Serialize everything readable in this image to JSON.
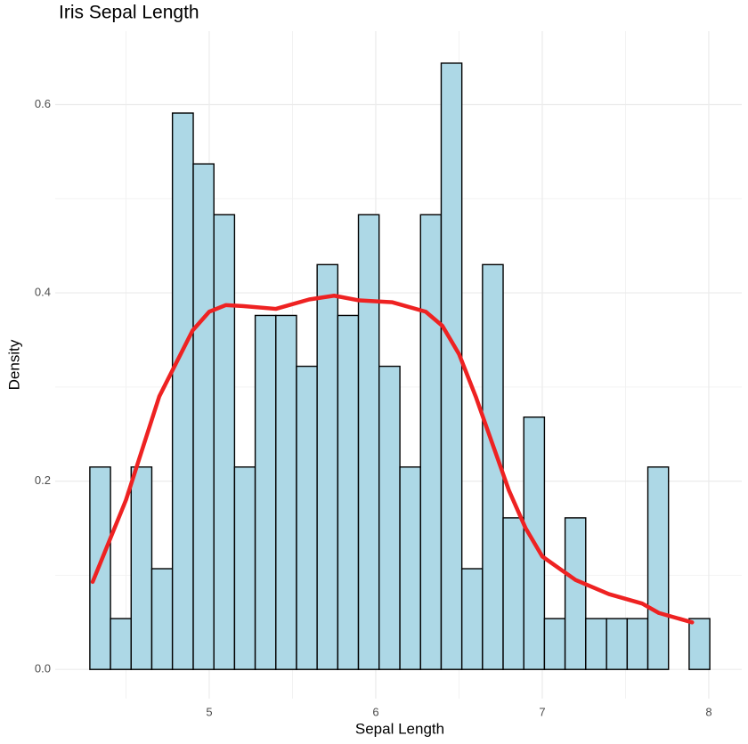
{
  "chart_data": {
    "type": "histogram",
    "title": "Iris Sepal Length",
    "x_label": "Sepal Length",
    "y_label": "Density",
    "bins": [
      4.283,
      4.407,
      4.531,
      4.655,
      4.779,
      4.904,
      5.028,
      5.152,
      5.276,
      5.4,
      5.524,
      5.648,
      5.772,
      5.896,
      6.02,
      6.145,
      6.269,
      6.393,
      6.517,
      6.641,
      6.765,
      6.889,
      7.013,
      7.137,
      7.261,
      7.386,
      7.51,
      7.634,
      7.758,
      7.882,
      8.006
    ],
    "values": [
      0.215,
      0.054,
      0.215,
      0.107,
      0.591,
      0.537,
      0.483,
      0.215,
      0.376,
      0.376,
      0.322,
      0.43,
      0.376,
      0.483,
      0.322,
      0.215,
      0.483,
      0.644,
      0.107,
      0.43,
      0.161,
      0.268,
      0.054,
      0.161,
      0.054,
      0.054,
      0.054,
      0.215,
      0,
      0.054
    ],
    "color": "#add8e6",
    "edge_color": "#000000",
    "density_curve": {
      "color": "#ee2222",
      "x": [
        4.3,
        4.5,
        4.7,
        4.9,
        5.0,
        5.1,
        5.2,
        5.4,
        5.6,
        5.75,
        5.9,
        6.1,
        6.3,
        6.4,
        6.5,
        6.6,
        6.7,
        6.8,
        6.9,
        7.0,
        7.2,
        7.4,
        7.6,
        7.7,
        7.9
      ],
      "values": [
        0.093,
        0.18,
        0.29,
        0.36,
        0.38,
        0.387,
        0.386,
        0.383,
        0.393,
        0.397,
        0.392,
        0.39,
        0.38,
        0.365,
        0.335,
        0.29,
        0.24,
        0.19,
        0.15,
        0.12,
        0.095,
        0.08,
        0.07,
        0.06,
        0.05
      ]
    },
    "xlim": [
      4.075,
      8.198
    ],
    "ylim": [
      -0.031,
      0.678
    ],
    "xticks": [
      5,
      6,
      7,
      8
    ],
    "yticks": [
      {
        "value": 0,
        "label": "0.0"
      },
      0.2,
      0.4,
      0.6
    ],
    "grid": true,
    "minor_grid": true
  }
}
